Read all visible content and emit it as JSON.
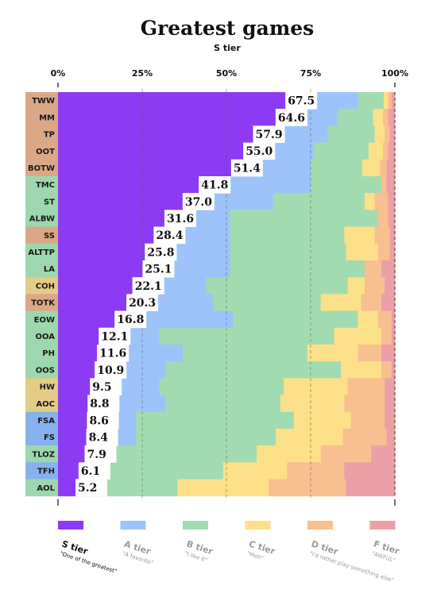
{
  "chart_data": {
    "type": "bar",
    "stacked": true,
    "orientation": "horizontal",
    "title": "Greatest games",
    "subtitle": "S tier",
    "x_ticks": [
      "0%",
      "25%",
      "50%",
      "75%",
      "100%"
    ],
    "xlim": [
      0,
      100
    ],
    "grid": true,
    "categories": [
      "TWW",
      "MM",
      "TP",
      "OOT",
      "BOTW",
      "TMC",
      "ST",
      "ALBW",
      "SS",
      "ALTTP",
      "LA",
      "COH",
      "TOTK",
      "EOW",
      "OOA",
      "PH",
      "OOS",
      "HW",
      "AOC",
      "FSA",
      "FS",
      "TLOZ",
      "TFH",
      "AOL"
    ],
    "category_groups": [
      "orange",
      "orange",
      "orange",
      "orange",
      "orange",
      "green",
      "green",
      "green",
      "orange",
      "green",
      "green",
      "yellow",
      "orange",
      "green",
      "green",
      "green",
      "green",
      "yellow",
      "yellow",
      "blue",
      "blue",
      "green",
      "blue",
      "green"
    ],
    "group_colors": {
      "orange": "#dba887",
      "green": "#9ed7ae",
      "yellow": "#e3cc86",
      "blue": "#86b1ec"
    },
    "value_labels": [
      "67.5",
      "64.6",
      "57.9",
      "55.0",
      "51.4",
      "41.8",
      "37.0",
      "31.6",
      "28.4",
      "25.8",
      "25.1",
      "22.1",
      "20.3",
      "16.8",
      "12.1",
      "11.6",
      "10.9",
      "9.5",
      "8.8",
      "8.6",
      "8.4",
      "7.9",
      "6.1",
      "5.2"
    ],
    "series": [
      {
        "name": "S tier",
        "description": "\"One of the greatest\"",
        "color": "#8c3bf2",
        "values": [
          67.5,
          64.6,
          57.9,
          55.0,
          51.4,
          41.8,
          37.0,
          31.6,
          28.4,
          25.8,
          25.1,
          22.1,
          20.3,
          16.8,
          12.1,
          11.6,
          10.9,
          9.5,
          8.8,
          8.6,
          8.4,
          7.9,
          6.1,
          5.2
        ]
      },
      {
        "name": "A tier",
        "description": "\"A favorite\"",
        "color": "#9ec3fb",
        "values": [
          21.5,
          18.4,
          22.1,
          21.0,
          23.6,
          33.2,
          27.0,
          19.4,
          22.6,
          25.2,
          25.9,
          21.9,
          25.7,
          35.2,
          17.9,
          25.4,
          21.1,
          20.5,
          23.2,
          14.4,
          14.6,
          8.1,
          5.9,
          7.3
        ]
      },
      {
        "name": "B tier",
        "description": "\"I like it\"",
        "color": "#a3dbb0",
        "values": [
          7.7,
          10.5,
          14.0,
          16.2,
          15.3,
          21.0,
          27.0,
          44.0,
          34.0,
          34.5,
          40.0,
          42.0,
          32.0,
          37.0,
          52.0,
          37.0,
          52.0,
          37.0,
          34.0,
          47.0,
          41.6,
          43.0,
          37.0,
          23.0
        ]
      },
      {
        "name": "C tier",
        "description": "\"Meh\"",
        "color": "#fce08a",
        "values": [
          1.3,
          3.0,
          3.0,
          4.3,
          5.3,
          0,
          3.0,
          0,
          9.0,
          9.5,
          0,
          5.0,
          12.0,
          6.0,
          14.0,
          15.0,
          12.0,
          19.0,
          19.0,
          17.0,
          20.0,
          19.0,
          19.0,
          27.0
        ]
      },
      {
        "name": "D tier",
        "description": "\"I'd rather play something else\"",
        "color": "#f8bf90",
        "values": [
          1.0,
          1.5,
          1.5,
          1.5,
          2.0,
          1.5,
          4.0,
          3.0,
          4.5,
          3.5,
          5.0,
          6.0,
          6.0,
          4.0,
          3.0,
          7.0,
          3.0,
          11.0,
          12.0,
          10.0,
          13.0,
          15.0,
          17.0,
          23.0
        ]
      },
      {
        "name": "F tier",
        "description": "\"AWFUL\"",
        "color": "#ec9fa6",
        "values": [
          1.0,
          2.0,
          1.5,
          2.0,
          2.4,
          2.5,
          2.0,
          2.0,
          1.5,
          1.5,
          4.0,
          3.0,
          4.0,
          1.0,
          1.0,
          4.0,
          1.0,
          3.0,
          3.0,
          3.0,
          2.4,
          7.0,
          15.0,
          14.5
        ]
      }
    ],
    "legend_position": "bottom"
  }
}
